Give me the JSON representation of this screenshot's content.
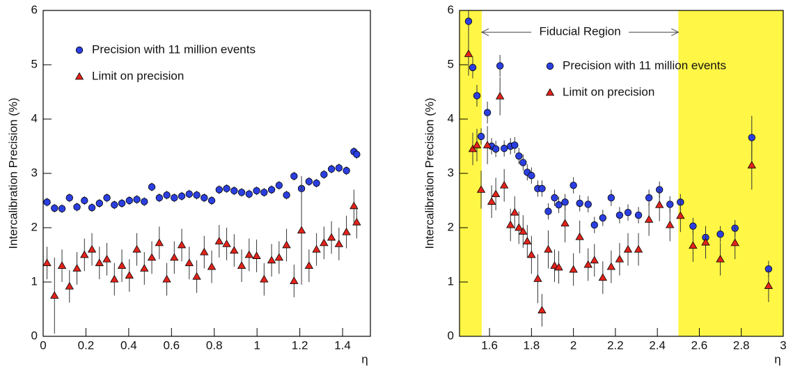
{
  "chart_data": [
    {
      "type": "scatter",
      "ylabel": "Intercalibration Precision (%)",
      "xlabel": "η",
      "xlim": [
        0,
        1.53
      ],
      "ylim": [
        0,
        6
      ],
      "xticks": [
        0,
        0.2,
        0.4,
        0.6,
        0.8,
        1,
        1.2,
        1.4
      ],
      "yticks": [
        0,
        1,
        2,
        3,
        4,
        5,
        6
      ],
      "legend_position": "upper-left",
      "x": [
        0.018,
        0.053,
        0.088,
        0.123,
        0.158,
        0.193,
        0.228,
        0.263,
        0.298,
        0.333,
        0.368,
        0.403,
        0.438,
        0.473,
        0.508,
        0.543,
        0.578,
        0.613,
        0.648,
        0.683,
        0.718,
        0.753,
        0.788,
        0.823,
        0.858,
        0.893,
        0.928,
        0.963,
        0.998,
        1.033,
        1.068,
        1.103,
        1.138,
        1.173,
        1.208,
        1.243,
        1.278,
        1.313,
        1.348,
        1.383,
        1.418,
        1.453,
        1.466
      ],
      "series": [
        {
          "name": "Precision with 11 million events",
          "color": "#2b3fe0",
          "marker": "circle",
          "values": [
            2.47,
            2.36,
            2.35,
            2.55,
            2.38,
            2.5,
            2.37,
            2.45,
            2.55,
            2.42,
            2.45,
            2.5,
            2.52,
            2.48,
            2.75,
            2.55,
            2.6,
            2.55,
            2.58,
            2.62,
            2.6,
            2.55,
            2.5,
            2.7,
            2.72,
            2.68,
            2.65,
            2.62,
            2.68,
            2.65,
            2.7,
            2.78,
            2.6,
            2.95,
            2.72,
            2.85,
            2.82,
            2.98,
            3.08,
            3.1,
            3.05,
            3.4,
            3.35
          ],
          "errors": [
            0.08,
            0.08,
            0.08,
            0.08,
            0.08,
            0.08,
            0.08,
            0.08,
            0.08,
            0.08,
            0.08,
            0.08,
            0.08,
            0.08,
            0.08,
            0.08,
            0.08,
            0.08,
            0.08,
            0.08,
            0.08,
            0.08,
            0.08,
            0.08,
            0.08,
            0.08,
            0.08,
            0.08,
            0.08,
            0.08,
            0.08,
            0.08,
            0.08,
            0.08,
            0.08,
            0.08,
            0.08,
            0.08,
            0.08,
            0.08,
            0.08,
            0.08,
            0.08
          ]
        },
        {
          "name": "Limit on precision",
          "color": "#e3231b",
          "marker": "triangle",
          "values": [
            1.35,
            0.75,
            1.3,
            0.92,
            1.25,
            1.5,
            1.6,
            1.35,
            1.42,
            1.05,
            1.3,
            1.12,
            1.6,
            1.25,
            1.45,
            1.72,
            1.05,
            1.45,
            1.68,
            1.35,
            1.1,
            1.55,
            1.28,
            1.75,
            1.7,
            1.58,
            1.3,
            1.5,
            1.48,
            1.05,
            1.4,
            1.45,
            1.68,
            1.02,
            1.95,
            1.3,
            1.6,
            1.72,
            1.82,
            1.7,
            1.92,
            2.4,
            2.1
          ],
          "errors": [
            0.3,
            0.7,
            0.3,
            0.3,
            0.3,
            0.3,
            0.3,
            0.3,
            0.3,
            0.3,
            0.3,
            0.3,
            0.3,
            0.3,
            0.3,
            0.3,
            0.3,
            0.3,
            0.3,
            0.3,
            0.3,
            0.3,
            0.3,
            0.3,
            0.3,
            0.3,
            0.3,
            0.3,
            0.3,
            0.3,
            0.3,
            0.3,
            0.3,
            0.3,
            1.0,
            0.3,
            0.3,
            0.3,
            0.3,
            0.3,
            0.3,
            0.3,
            0.3
          ]
        }
      ]
    },
    {
      "type": "scatter",
      "ylabel": "Intercalibration Precision (%)",
      "xlabel": "η",
      "xlim": [
        1.457,
        3.0
      ],
      "ylim": [
        0,
        6
      ],
      "xticks": [
        1.6,
        1.8,
        2,
        2.2,
        2.4,
        2.6,
        2.8,
        3
      ],
      "yticks": [
        0,
        1,
        2,
        3,
        4,
        5,
        6
      ],
      "legend_position": "upper-center",
      "shaded_regions": [
        {
          "from": 1.457,
          "to": 1.563,
          "color": "#fff645"
        },
        {
          "from": 2.5,
          "to": 3.0,
          "color": "#fff645"
        }
      ],
      "annotation": {
        "text": "Fiducial Region",
        "from": 1.563,
        "to": 2.5,
        "y": 5.6
      },
      "x": [
        1.5,
        1.52,
        1.54,
        1.56,
        1.59,
        1.61,
        1.63,
        1.65,
        1.67,
        1.7,
        1.72,
        1.74,
        1.76,
        1.78,
        1.8,
        1.83,
        1.85,
        1.88,
        1.91,
        1.93,
        1.96,
        2.0,
        2.03,
        2.07,
        2.1,
        2.14,
        2.18,
        2.22,
        2.26,
        2.31,
        2.36,
        2.41,
        2.46,
        2.51,
        2.57,
        2.63,
        2.7,
        2.77,
        2.85,
        2.93
      ],
      "series": [
        {
          "name": "Precision with 11 million events",
          "color": "#2b3fe0",
          "marker": "circle",
          "values": [
            5.8,
            4.95,
            4.43,
            3.68,
            4.12,
            3.5,
            3.45,
            4.98,
            3.46,
            3.5,
            3.52,
            3.32,
            3.2,
            3.02,
            2.96,
            2.72,
            2.72,
            2.3,
            2.55,
            2.42,
            2.47,
            2.78,
            2.45,
            2.43,
            2.05,
            2.18,
            2.55,
            2.23,
            2.28,
            2.23,
            2.55,
            2.7,
            2.43,
            2.47,
            2.03,
            1.82,
            1.88,
            1.99,
            3.66,
            1.24
          ],
          "errors": [
            0.2,
            0.2,
            0.2,
            0.15,
            0.2,
            0.15,
            0.15,
            0.2,
            0.15,
            0.15,
            0.15,
            0.15,
            0.15,
            0.15,
            0.15,
            0.15,
            0.15,
            0.15,
            0.15,
            0.15,
            0.15,
            0.15,
            0.15,
            0.15,
            0.15,
            0.15,
            0.15,
            0.15,
            0.15,
            0.15,
            0.15,
            0.15,
            0.15,
            0.15,
            0.15,
            0.15,
            0.15,
            0.15,
            0.4,
            0.15
          ]
        },
        {
          "name": "Limit on precision",
          "color": "#e3231b",
          "marker": "triangle",
          "values": [
            5.2,
            3.45,
            3.52,
            2.7,
            3.52,
            2.48,
            2.62,
            4.42,
            2.78,
            2.05,
            2.28,
            2.0,
            1.93,
            1.75,
            1.5,
            1.06,
            0.48,
            1.6,
            1.3,
            1.27,
            2.08,
            1.23,
            1.83,
            1.32,
            1.4,
            1.08,
            1.28,
            1.42,
            1.6,
            1.6,
            2.15,
            2.42,
            2.05,
            2.22,
            1.67,
            1.73,
            1.42,
            1.72,
            3.15,
            0.93
          ],
          "errors": [
            0.4,
            0.3,
            0.3,
            0.35,
            0.35,
            0.3,
            0.3,
            0.35,
            0.3,
            0.3,
            0.3,
            0.3,
            0.3,
            0.3,
            0.35,
            0.45,
            0.3,
            0.35,
            0.3,
            0.3,
            0.35,
            0.3,
            0.3,
            0.3,
            0.3,
            0.3,
            0.3,
            0.3,
            0.3,
            0.3,
            0.3,
            0.3,
            0.3,
            0.3,
            0.3,
            0.3,
            0.3,
            0.3,
            0.45,
            0.3
          ]
        }
      ]
    }
  ]
}
